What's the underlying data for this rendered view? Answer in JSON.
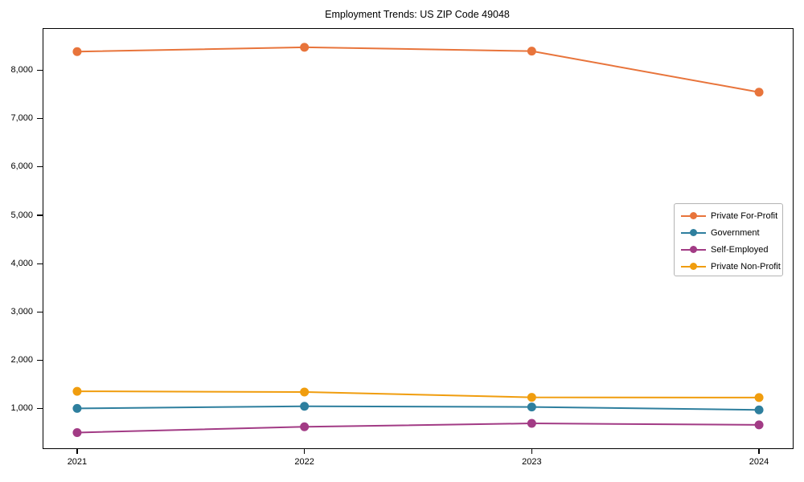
{
  "title": "Employment Trends: US ZIP Code 49048",
  "chart_data": {
    "type": "line",
    "title": "Employment Trends: US ZIP Code 49048",
    "xlabel": "",
    "ylabel": "",
    "x": [
      2021,
      2022,
      2023,
      2024
    ],
    "xtick_labels": [
      "2021",
      "2022",
      "2023",
      "2024"
    ],
    "yticks": [
      1000,
      2000,
      3000,
      4000,
      5000,
      6000,
      7000,
      8000
    ],
    "ytick_labels": [
      "1,000",
      "2,000",
      "3,000",
      "4,000",
      "5,000",
      "6,000",
      "7,000",
      "8,000"
    ],
    "ylim": [
      175,
      8860
    ],
    "grid": false,
    "marker": "circle",
    "legend_position": "right-middle",
    "series": [
      {
        "name": "Private For-Profit",
        "color": "#e8743b",
        "values": [
          8390,
          8480,
          8400,
          7550
        ]
      },
      {
        "name": "Government",
        "color": "#2e7f9e",
        "values": [
          1000,
          1045,
          1030,
          970
        ]
      },
      {
        "name": "Self-Employed",
        "color": "#a23b85",
        "values": [
          500,
          620,
          690,
          660
        ]
      },
      {
        "name": "Private Non-Profit",
        "color": "#f09d0e",
        "values": [
          1355,
          1340,
          1230,
          1225
        ]
      }
    ]
  }
}
